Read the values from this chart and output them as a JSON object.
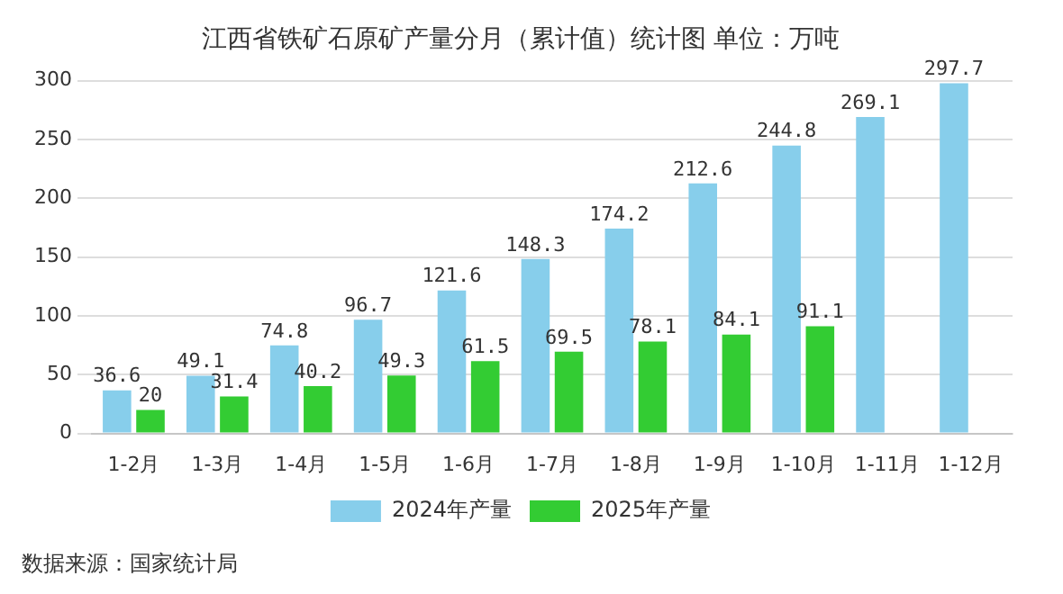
{
  "chart_data": {
    "type": "bar",
    "title": "江西省铁矿石原矿产量分月（累计值）统计图 单位：万吨",
    "categories": [
      "1-2月",
      "1-3月",
      "1-4月",
      "1-5月",
      "1-6月",
      "1-7月",
      "1-8月",
      "1-9月",
      "1-10月",
      "1-11月",
      "1-12月"
    ],
    "series": [
      {
        "name": "2024年产量",
        "color": "#87ceeb",
        "values": [
          36.6,
          49.1,
          74.8,
          96.7,
          121.6,
          148.3,
          174.2,
          212.6,
          244.8,
          269.1,
          297.7
        ]
      },
      {
        "name": "2025年产量",
        "color": "#33cc33",
        "values": [
          20,
          31.4,
          40.2,
          49.3,
          61.5,
          69.5,
          78.1,
          84.1,
          91.1,
          null,
          null
        ]
      }
    ],
    "ylim": [
      0,
      300
    ],
    "yticks": [
      0,
      50,
      100,
      150,
      200,
      250,
      300
    ],
    "grid": "y",
    "legend": "bottom",
    "data_labels": true,
    "annotations": [
      "数据来源：国家统计局"
    ]
  }
}
